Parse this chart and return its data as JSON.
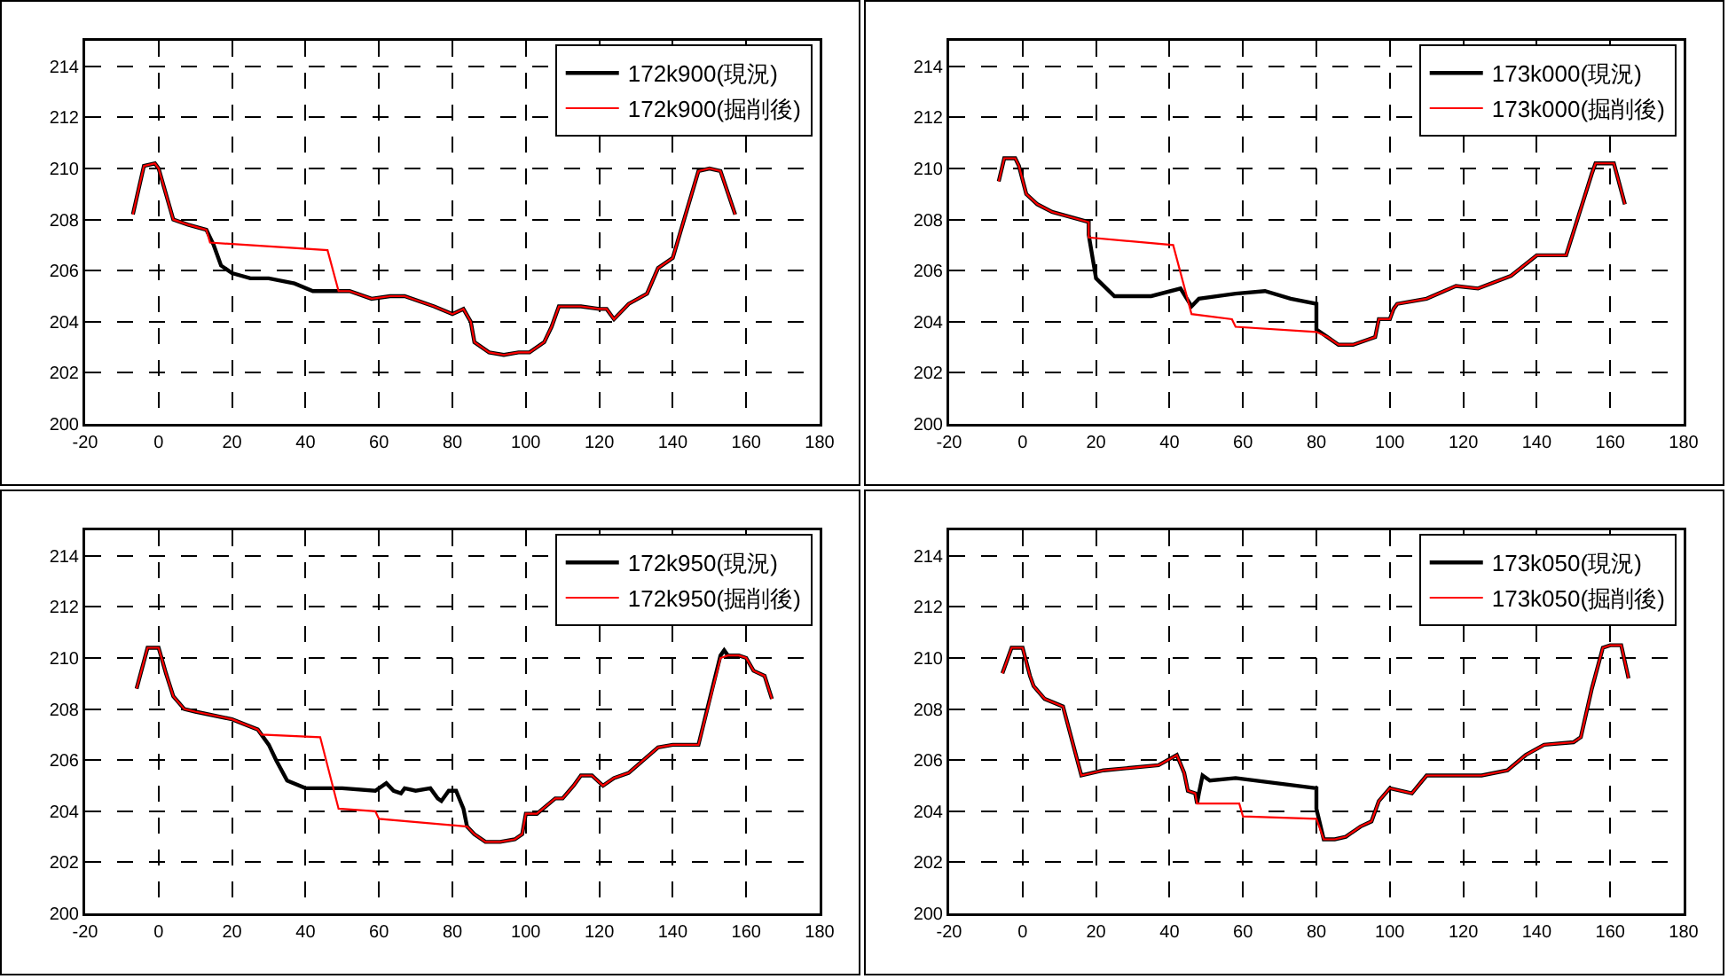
{
  "chart_data": [
    {
      "type": "line",
      "xlim": [
        -20,
        180
      ],
      "xticks": [
        -20,
        0,
        20,
        40,
        60,
        80,
        100,
        120,
        140,
        160,
        180
      ],
      "ylim": [
        200,
        215
      ],
      "yticks": [
        200,
        202,
        204,
        206,
        208,
        210,
        212,
        214
      ],
      "grid": true,
      "legend": "top right",
      "line_style": "solid",
      "series": [
        {
          "name": "172k900(現況)",
          "color": "#000000",
          "x": [
            -7,
            -4,
            -1,
            0,
            4,
            8,
            13,
            15,
            17,
            20,
            25,
            30,
            37,
            42,
            48,
            52,
            58,
            63,
            67,
            75,
            80,
            83,
            85,
            86,
            90,
            94,
            98,
            101,
            105,
            107,
            109,
            115,
            120,
            122,
            124,
            128,
            133,
            136,
            140,
            147,
            150,
            153,
            157
          ],
          "values": [
            208.2,
            210.1,
            210.2,
            210,
            208,
            207.8,
            207.6,
            207,
            206.2,
            205.9,
            205.7,
            205.7,
            205.5,
            205.2,
            205.2,
            205.2,
            204.9,
            205,
            205,
            204.6,
            204.3,
            204.5,
            204,
            203.2,
            202.8,
            202.7,
            202.8,
            202.8,
            203.2,
            203.8,
            204.6,
            204.6,
            204.5,
            204.5,
            204.1,
            204.7,
            205.1,
            206.1,
            206.5,
            209.9,
            210,
            209.9,
            208.2
          ]
        },
        {
          "name": "172k900(掘削後)",
          "color": "#ff0000",
          "x": [
            -7,
            -4,
            -1,
            0,
            4,
            8,
            13,
            14,
            46,
            49,
            52,
            58,
            63,
            67,
            75,
            80,
            83,
            85,
            86,
            90,
            94,
            98,
            101,
            105,
            107,
            109,
            115,
            120,
            122,
            124,
            128,
            133,
            136,
            140,
            147,
            150,
            153,
            157
          ],
          "values": [
            208.2,
            210.1,
            210.2,
            210,
            208,
            207.8,
            207.6,
            207.1,
            206.8,
            205.2,
            205.2,
            204.9,
            205,
            205,
            204.6,
            204.3,
            204.5,
            204,
            203.2,
            202.8,
            202.7,
            202.8,
            202.8,
            203.2,
            203.8,
            204.6,
            204.6,
            204.5,
            204.5,
            204.1,
            204.7,
            205.1,
            206.1,
            206.5,
            209.9,
            210,
            209.9,
            208.2
          ]
        }
      ]
    },
    {
      "type": "line",
      "xlim": [
        -20,
        180
      ],
      "xticks": [
        -20,
        0,
        20,
        40,
        60,
        80,
        100,
        120,
        140,
        160,
        180
      ],
      "ylim": [
        200,
        215
      ],
      "yticks": [
        200,
        202,
        204,
        206,
        208,
        210,
        212,
        214
      ],
      "grid": true,
      "legend": "top right",
      "line_style": "solid",
      "series": [
        {
          "name": "173k000(現況)",
          "color": "#000000",
          "x": [
            -6.5,
            -5,
            -2,
            -1,
            1,
            4,
            8,
            18,
            18,
            20,
            25,
            35,
            43,
            46,
            48,
            58,
            66,
            73,
            80,
            80,
            83,
            86,
            90,
            94,
            96,
            97,
            100,
            101,
            102,
            110,
            118,
            124,
            133,
            140,
            148,
            155,
            156,
            161,
            164
          ],
          "values": [
            209.5,
            210.4,
            210.4,
            210.1,
            209,
            208.6,
            208.3,
            207.9,
            207.4,
            205.7,
            205,
            205,
            205.3,
            204.6,
            204.9,
            205.1,
            205.2,
            204.9,
            204.7,
            203.7,
            203.4,
            203.1,
            203.1,
            203.3,
            203.4,
            204.1,
            204.1,
            204.5,
            204.7,
            204.9,
            205.4,
            205.3,
            205.8,
            206.6,
            206.6,
            209.8,
            210.2,
            210.2,
            208.6
          ]
        },
        {
          "name": "173k000(掘削後)",
          "color": "#ff0000",
          "x": [
            -6.5,
            -5,
            -2,
            -1,
            1,
            4,
            8,
            18,
            18,
            41,
            46,
            57,
            58,
            80,
            83,
            86,
            90,
            94,
            96,
            97,
            100,
            101,
            102,
            110,
            118,
            124,
            133,
            140,
            148,
            155,
            156,
            161,
            164
          ],
          "values": [
            209.5,
            210.4,
            210.4,
            210.1,
            209,
            208.6,
            208.3,
            207.9,
            207.3,
            207,
            204.3,
            204.1,
            203.8,
            203.6,
            203.4,
            203.1,
            203.1,
            203.3,
            203.4,
            204.1,
            204.1,
            204.5,
            204.7,
            204.9,
            205.4,
            205.3,
            205.8,
            206.6,
            206.6,
            209.8,
            210.2,
            210.2,
            208.6
          ]
        }
      ]
    },
    {
      "type": "line",
      "xlim": [
        -20,
        180
      ],
      "xticks": [
        -20,
        0,
        20,
        40,
        60,
        80,
        100,
        120,
        140,
        160,
        180
      ],
      "ylim": [
        200,
        215
      ],
      "yticks": [
        200,
        202,
        204,
        206,
        208,
        210,
        212,
        214
      ],
      "grid": true,
      "legend": "top right",
      "line_style": "solid",
      "series": [
        {
          "name": "172k950(現況)",
          "color": "#000000",
          "x": [
            -6,
            -3,
            0,
            2,
            4,
            7,
            10,
            20,
            27,
            30,
            32,
            35,
            40,
            50,
            59,
            62,
            64,
            66,
            67,
            70,
            74,
            76,
            77,
            79,
            81,
            83,
            84,
            86,
            89,
            93,
            97,
            99,
            100,
            103,
            108,
            110,
            113,
            115,
            118,
            121,
            124,
            128,
            136,
            140,
            147,
            153,
            154,
            155,
            158,
            160,
            162,
            165,
            167
          ],
          "values": [
            208.8,
            210.4,
            210.4,
            209.4,
            208.5,
            208,
            207.9,
            207.6,
            207.2,
            206.6,
            206,
            205.2,
            204.9,
            204.9,
            204.8,
            205.1,
            204.8,
            204.7,
            204.9,
            204.8,
            204.9,
            204.5,
            204.4,
            204.8,
            204.8,
            204.1,
            203.4,
            203.1,
            202.8,
            202.8,
            202.9,
            203.1,
            203.9,
            203.9,
            204.5,
            204.5,
            205,
            205.4,
            205.4,
            205,
            205.3,
            205.5,
            206.5,
            206.6,
            206.6,
            210.1,
            210.3,
            210.1,
            210.1,
            210,
            209.5,
            209.3,
            208.4
          ]
        },
        {
          "name": "172k950(掘削後)",
          "color": "#ff0000",
          "x": [
            -6,
            -3,
            0,
            2,
            4,
            7,
            10,
            20,
            27,
            28,
            44,
            49,
            59,
            60,
            84,
            86,
            89,
            93,
            97,
            99,
            100,
            103,
            108,
            110,
            113,
            115,
            118,
            121,
            124,
            128,
            136,
            140,
            147,
            153,
            155,
            158,
            160,
            162,
            165,
            167
          ],
          "values": [
            208.8,
            210.4,
            210.4,
            209.4,
            208.5,
            208,
            207.9,
            207.6,
            207.2,
            207,
            206.9,
            204.1,
            204,
            203.7,
            203.4,
            203.1,
            202.8,
            202.8,
            202.9,
            203.1,
            203.9,
            203.9,
            204.5,
            204.5,
            205,
            205.4,
            205.4,
            205,
            205.3,
            205.5,
            206.5,
            206.6,
            206.6,
            210,
            210.1,
            210.1,
            210,
            209.5,
            209.3,
            208.4
          ]
        }
      ]
    },
    {
      "type": "line",
      "xlim": [
        -20,
        180
      ],
      "xticks": [
        -20,
        0,
        20,
        40,
        60,
        80,
        100,
        120,
        140,
        160,
        180
      ],
      "ylim": [
        200,
        215
      ],
      "yticks": [
        200,
        202,
        204,
        206,
        208,
        210,
        212,
        214
      ],
      "grid": true,
      "legend": "top right",
      "line_style": "solid",
      "series": [
        {
          "name": "173k050(現況)",
          "color": "#000000",
          "x": [
            -5.5,
            -3,
            0,
            2,
            3,
            6,
            11,
            16,
            22,
            37,
            42,
            44,
            45,
            47,
            47.5,
            48,
            49,
            51,
            58,
            80,
            80,
            82,
            85,
            88,
            92,
            95,
            97,
            100,
            106,
            110,
            125,
            132,
            137,
            142,
            150,
            152,
            155,
            158,
            160,
            163,
            165
          ],
          "values": [
            209.4,
            210.4,
            210.4,
            209.3,
            208.9,
            208.4,
            208.1,
            205.4,
            205.6,
            205.8,
            206.2,
            205.5,
            204.8,
            204.7,
            204.3,
            204.7,
            205.4,
            205.2,
            205.3,
            204.9,
            204.1,
            202.9,
            202.9,
            203,
            203.4,
            203.6,
            204.4,
            204.9,
            204.7,
            205.4,
            205.4,
            205.6,
            206.2,
            206.6,
            206.7,
            206.9,
            208.8,
            210.4,
            210.5,
            210.5,
            209.2
          ]
        },
        {
          "name": "173k050(掘削後)",
          "color": "#ff0000",
          "x": [
            -5.5,
            -3,
            0,
            2,
            3,
            6,
            11,
            16,
            22,
            37,
            42,
            44,
            45,
            47,
            47.5,
            48,
            59,
            60,
            80,
            82,
            85,
            88,
            92,
            95,
            97,
            100,
            106,
            110,
            125,
            132,
            137,
            142,
            150,
            152,
            155,
            158,
            160,
            163,
            165
          ],
          "values": [
            209.4,
            210.4,
            210.4,
            209.3,
            208.9,
            208.4,
            208.1,
            205.4,
            205.6,
            205.8,
            206.2,
            205.5,
            204.8,
            204.7,
            204.3,
            204.3,
            204.3,
            203.8,
            203.7,
            202.9,
            202.9,
            203,
            203.4,
            203.6,
            204.4,
            204.9,
            204.7,
            205.4,
            205.4,
            205.6,
            206.2,
            206.6,
            206.7,
            206.9,
            208.8,
            210.4,
            210.5,
            210.5,
            209.2
          ]
        }
      ]
    }
  ]
}
